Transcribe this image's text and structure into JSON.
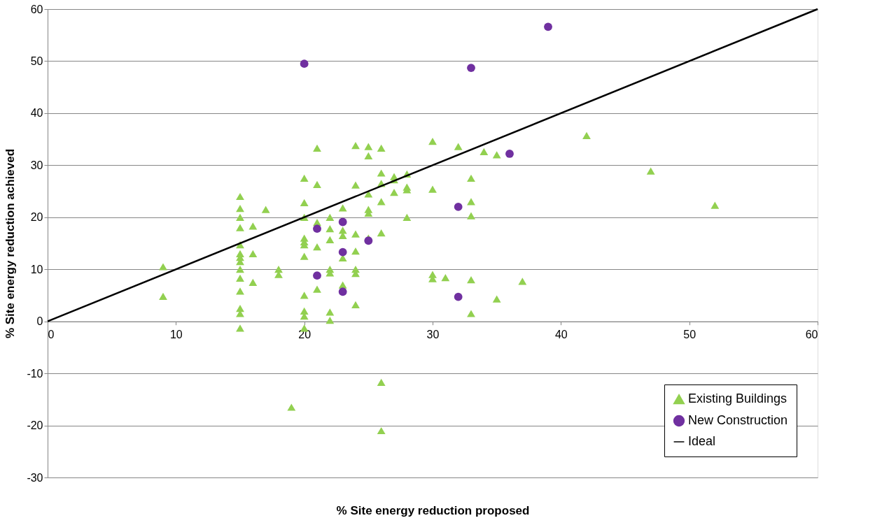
{
  "chart_data": {
    "type": "scatter",
    "xlabel": "% Site energy reduction proposed",
    "ylabel": "% Site energy reduction achieved",
    "xlim": [
      0,
      60
    ],
    "xticks": [
      0,
      10,
      20,
      30,
      40,
      50,
      60
    ],
    "ylim": [
      -30,
      60
    ],
    "yticks": [
      -30,
      -20,
      -10,
      0,
      10,
      20,
      30,
      40,
      50,
      60
    ],
    "grid": "y",
    "legend": "bottom right",
    "series": [
      {
        "name": "Existing Buildings",
        "marker": "triangle",
        "color": "#92d050",
        "x": [
          9,
          9,
          15,
          15,
          15,
          15,
          15,
          15,
          15,
          15,
          15,
          15,
          15,
          15,
          15,
          15,
          16,
          16,
          16,
          17,
          18,
          18,
          19,
          20,
          20,
          20,
          20,
          20,
          20,
          20,
          20,
          20,
          20,
          20,
          21,
          21,
          21,
          21,
          21,
          22,
          22,
          22,
          22,
          22,
          22,
          22,
          23,
          23,
          23,
          23,
          23,
          24,
          24,
          24,
          24,
          24,
          24,
          24,
          25,
          25,
          25,
          25,
          25,
          25,
          26,
          26,
          26,
          26,
          26,
          26,
          26,
          27,
          27,
          27,
          28,
          28,
          28,
          28,
          30,
          30,
          30,
          30,
          31,
          32,
          33,
          33,
          33,
          33,
          33,
          34,
          35,
          35,
          37,
          42,
          47,
          52
        ],
        "values": [
          10.5,
          4.8,
          24,
          21.7,
          20,
          18,
          14.7,
          13,
          12.3,
          11.5,
          10,
          8.3,
          5.8,
          2.5,
          1.5,
          -1.3,
          18.3,
          13,
          7.5,
          21.5,
          10,
          9,
          -16.5,
          27.5,
          22.8,
          20,
          16,
          15.3,
          14.7,
          12.5,
          5,
          2,
          1,
          -1.3,
          33.3,
          26.3,
          19,
          14.3,
          6.2,
          20,
          17.8,
          15.7,
          10,
          9.3,
          1.8,
          0.2,
          21.8,
          17.5,
          16.5,
          12.2,
          7,
          33.8,
          26.2,
          16.8,
          13.5,
          10,
          9.2,
          3.2,
          33.6,
          31.8,
          24.5,
          21.5,
          20.8,
          16,
          33.3,
          28.5,
          26.5,
          23,
          17,
          -11.7,
          -21,
          27.8,
          27.2,
          24.8,
          28.3,
          25.8,
          25.3,
          20,
          34.6,
          25.4,
          9,
          8.2,
          8.4,
          33.6,
          27.5,
          23,
          20.3,
          8,
          1.5,
          32.6,
          32,
          4.3,
          7.7,
          35.7,
          28.9,
          22.3
        ]
      },
      {
        "name": "New Construction",
        "marker": "circle",
        "color": "#7030a0",
        "x": [
          20,
          21,
          21,
          23,
          23,
          23,
          25,
          32,
          32,
          33,
          36,
          39
        ],
        "values": [
          49.5,
          17.8,
          8.8,
          19.1,
          13.3,
          5.7,
          15.5,
          22,
          4.7,
          48.7,
          32.2,
          56.6
        ]
      },
      {
        "name": "Ideal",
        "type": "line",
        "marker": "none",
        "line_style": "solid",
        "color": "#000000",
        "x": [
          0,
          60
        ],
        "values": [
          0,
          60
        ]
      }
    ]
  }
}
